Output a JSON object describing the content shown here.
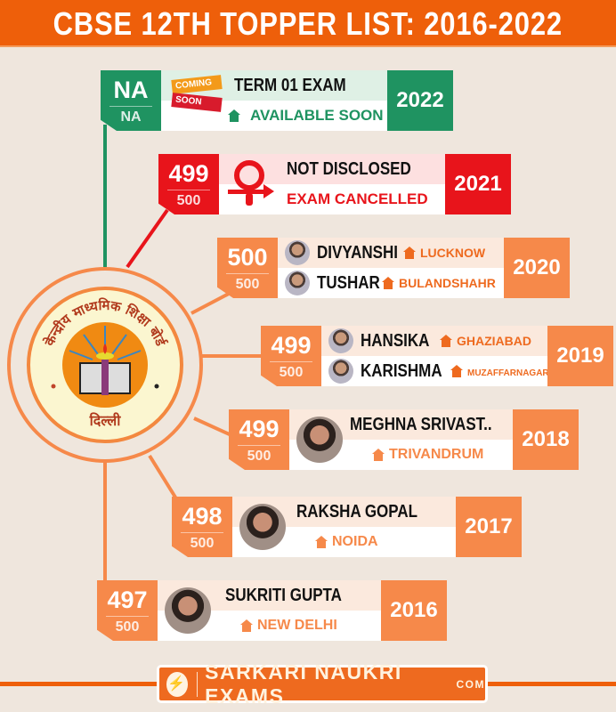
{
  "title": "CBSE 12TH TOPPER LIST: 2016-2022",
  "logo_text": [
    "केन्द्रीय माध्यमिक शिक्षा बोर्ड",
    "दिल्ली"
  ],
  "colors": {
    "title_bg": "#ee5f0a",
    "green": "#1f9361",
    "red": "#e8141b",
    "orange": "#f6894a",
    "background": "#efe6dd"
  },
  "rows": [
    {
      "year": "2022",
      "score": "NA",
      "max": "NA",
      "heading": "TERM 01 EXAM",
      "sub": "AVAILABLE SOON",
      "badge": [
        "COMING",
        "SOON"
      ]
    },
    {
      "year": "2021",
      "score": "499",
      "max": "500",
      "heading": "NOT DISCLOSED",
      "sub": "EXAM CANCELLED"
    },
    {
      "year": "2020",
      "score": "500",
      "max": "500",
      "toppers": [
        {
          "name": "DIVYANSHI",
          "city": "LUCKNOW"
        },
        {
          "name": "TUSHAR",
          "city": "BULANDSHAHR"
        }
      ]
    },
    {
      "year": "2019",
      "score": "499",
      "max": "500",
      "toppers": [
        {
          "name": "HANSIKA",
          "city": "GHAZIABAD"
        },
        {
          "name": "KARISHMA",
          "city": "MUZAFFARNAGAR"
        }
      ]
    },
    {
      "year": "2018",
      "score": "499",
      "max": "500",
      "name": "MEGHNA SRIVAST..",
      "city": "TRIVANDRUM"
    },
    {
      "year": "2017",
      "score": "498",
      "max": "500",
      "name": "RAKSHA GOPAL",
      "city": "NOIDA"
    },
    {
      "year": "2016",
      "score": "497",
      "max": "500",
      "name": "SUKRITI GUPTA",
      "city": "NEW DELHI"
    }
  ],
  "footer": {
    "brand": "SARKARI NAUKRI EXAMS",
    "suffix": "COM"
  }
}
